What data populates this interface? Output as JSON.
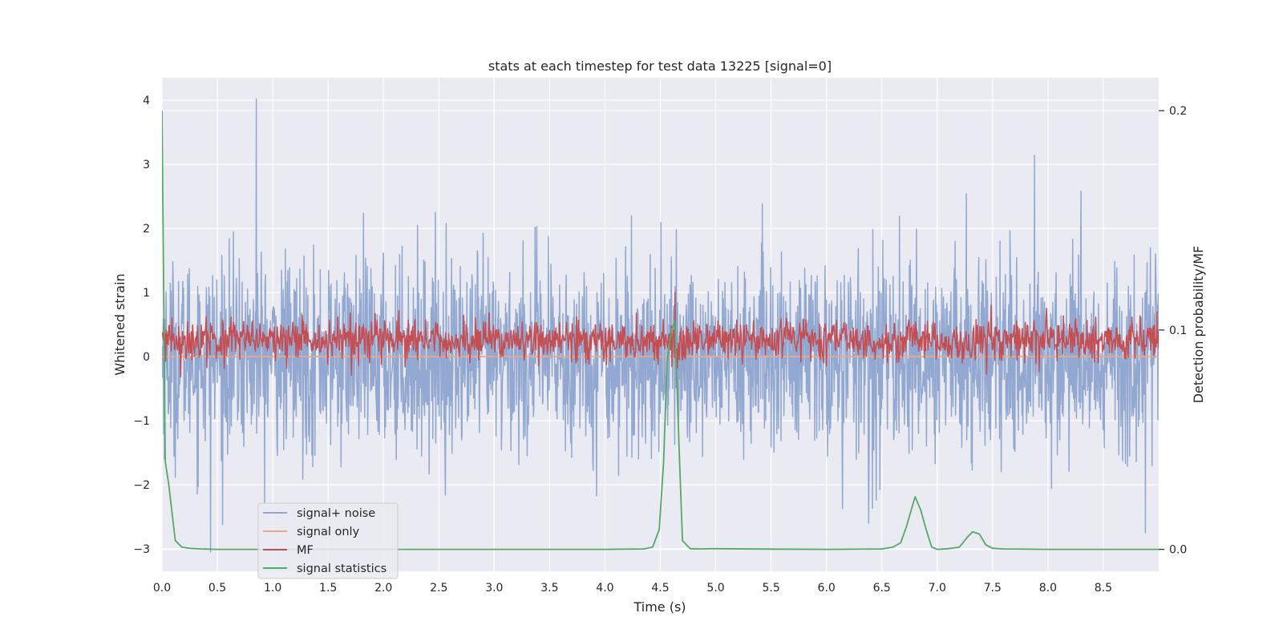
{
  "chart_data": {
    "type": "line",
    "title": "stats at each timestep for test data 13225 [signal=0]",
    "xlabel": "Time (s)",
    "ylabel": "Whitened strain",
    "y2label": "Detection probability/MF",
    "xlim": [
      0.0,
      9.0
    ],
    "ylim": [
      -3.35,
      4.35
    ],
    "y2lim": [
      -0.01,
      0.215
    ],
    "xticks": [
      0.0,
      0.5,
      1.0,
      1.5,
      2.0,
      2.5,
      3.0,
      3.5,
      4.0,
      4.5,
      5.0,
      5.5,
      6.0,
      6.5,
      7.0,
      7.5,
      8.0,
      8.5
    ],
    "xtick_labels": [
      "0.0",
      "0.5",
      "1.0",
      "1.5",
      "2.0",
      "2.5",
      "3.0",
      "3.5",
      "4.0",
      "4.5",
      "5.0",
      "5.5",
      "6.0",
      "6.5",
      "7.0",
      "7.5",
      "8.0",
      "8.5"
    ],
    "yticks": [
      4,
      3,
      2,
      1,
      0,
      -1,
      -2,
      -3
    ],
    "ytick_labels": [
      "4",
      "3",
      "2",
      "1",
      "0",
      "−1",
      "−2",
      "−3"
    ],
    "y2ticks": [
      0.2,
      0.1,
      0.0
    ],
    "y2tick_labels": [
      "0.2",
      "0.1",
      "0.0"
    ],
    "grid": true,
    "legend_position": "lower-left",
    "series": [
      {
        "name": "signal+ noise",
        "color": "#92a8d1",
        "axis": "left",
        "kind": "noise",
        "mean": 0.0,
        "std": 0.75,
        "samples": 2400,
        "spikes": [
          {
            "x": 0.85,
            "y": 4.02
          },
          {
            "x": 0.44,
            "y": -3.05
          },
          {
            "x": 7.88,
            "y": 3.14
          },
          {
            "x": 8.3,
            "y": 2.58
          },
          {
            "x": 6.38,
            "y": -2.6
          },
          {
            "x": 8.88,
            "y": -2.75
          }
        ]
      },
      {
        "name": "signal only",
        "color": "#e8a98a",
        "axis": "left",
        "kind": "constant",
        "value": 0.0
      },
      {
        "name": "MF",
        "color": "#c44e52",
        "axis": "left",
        "kind": "noise",
        "mean": 0.25,
        "std": 0.16,
        "samples": 1600,
        "spikes": [
          {
            "x": 4.63,
            "y": 1.0
          }
        ]
      },
      {
        "name": "signal statistics",
        "color": "#55a868",
        "axis": "right",
        "kind": "points",
        "x": [
          0.0,
          0.03,
          0.06,
          0.12,
          0.18,
          0.25,
          0.35,
          0.5,
          1.0,
          2.0,
          3.0,
          4.0,
          4.35,
          4.43,
          4.49,
          4.53,
          4.56,
          4.6,
          4.63,
          4.67,
          4.7,
          4.77,
          4.85,
          5.0,
          5.5,
          6.0,
          6.5,
          6.6,
          6.67,
          6.72,
          6.8,
          6.85,
          6.9,
          6.95,
          7.0,
          7.1,
          7.2,
          7.28,
          7.32,
          7.38,
          7.44,
          7.5,
          7.6,
          8.0,
          8.5,
          9.0
        ],
        "y": [
          0.2,
          0.04,
          0.03,
          0.004,
          0.001,
          0.0005,
          0.0002,
          0.0,
          0.0,
          0.0,
          0.0,
          0.0,
          0.0002,
          0.001,
          0.009,
          0.04,
          0.085,
          0.1,
          0.104,
          0.045,
          0.004,
          0.0003,
          0.0002,
          0.0003,
          0.0001,
          0.0,
          0.0002,
          0.001,
          0.003,
          0.01,
          0.024,
          0.018,
          0.009,
          0.001,
          0.0,
          0.0003,
          0.001,
          0.006,
          0.008,
          0.007,
          0.002,
          0.0005,
          0.0002,
          0.0,
          0.0,
          0.0
        ]
      }
    ]
  }
}
